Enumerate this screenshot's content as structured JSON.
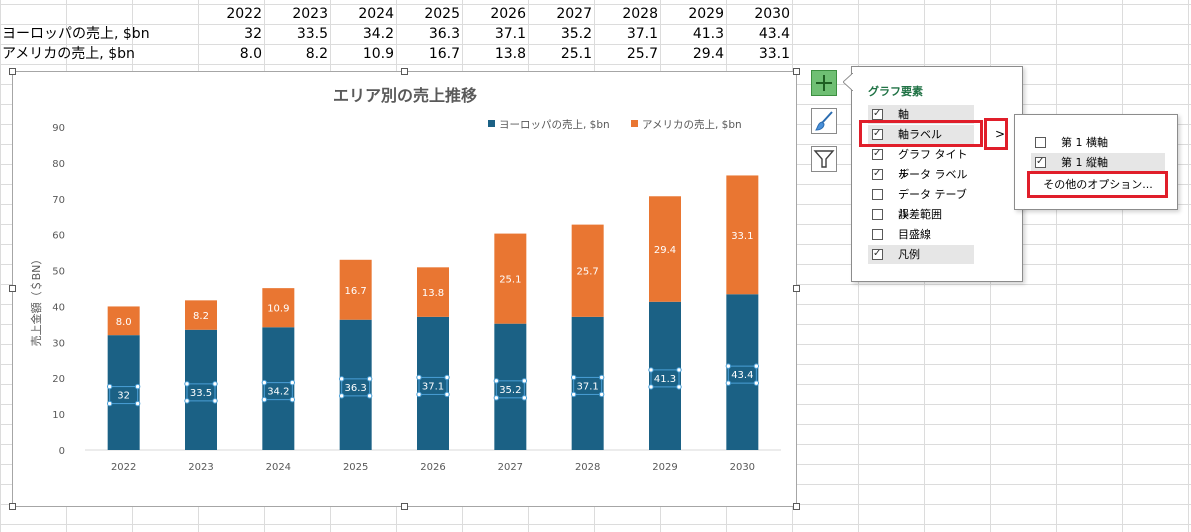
{
  "sheet": {
    "years": [
      "2022",
      "2023",
      "2024",
      "2025",
      "2026",
      "2027",
      "2028",
      "2029",
      "2030"
    ],
    "rows": [
      {
        "label": "ヨーロッパの売上, $bn",
        "values": [
          "32",
          "33.5",
          "34.2",
          "36.3",
          "37.1",
          "35.2",
          "37.1",
          "41.3",
          "43.4"
        ]
      },
      {
        "label": "アメリカの売上, $bn",
        "values": [
          "8.0",
          "8.2",
          "10.9",
          "16.7",
          "13.8",
          "25.1",
          "25.7",
          "29.4",
          "33.1"
        ]
      }
    ]
  },
  "chart_data": {
    "type": "bar",
    "stacked": true,
    "title": "エリア別の売上推移",
    "ylabel": "売上金額（＄BN）",
    "xlabel": "",
    "ylim": [
      0,
      90
    ],
    "yticks": [
      0,
      10,
      20,
      30,
      40,
      50,
      60,
      70,
      80,
      90
    ],
    "grid": false,
    "legend": "top-right",
    "categories": [
      "2022",
      "2023",
      "2024",
      "2025",
      "2026",
      "2027",
      "2028",
      "2029",
      "2030"
    ],
    "series": [
      {
        "name": "ヨーロッパの売上, $bn",
        "color": "#1b6185",
        "values": [
          32,
          33.5,
          34.2,
          36.3,
          37.1,
          35.2,
          37.1,
          41.3,
          43.4
        ],
        "labels": [
          "32",
          "33.5",
          "34.2",
          "36.3",
          "37.1",
          "35.2",
          "37.1",
          "41.3",
          "43.4"
        ]
      },
      {
        "name": "アメリカの売上, $bn",
        "color": "#e97632",
        "values": [
          8.0,
          8.2,
          10.9,
          16.7,
          13.8,
          25.1,
          25.7,
          29.4,
          33.1
        ],
        "labels": [
          "8.0",
          "8.2",
          "10.9",
          "16.7",
          "13.8",
          "25.1",
          "25.7",
          "29.4",
          "33.1"
        ]
      }
    ]
  },
  "side_buttons": {
    "elements": "plus-icon",
    "styles": "paintbrush-icon",
    "filters": "funnel-icon"
  },
  "chart_elements_menu": {
    "title": "グラフ要素",
    "items": [
      {
        "label": "軸",
        "checked": true
      },
      {
        "label": "軸ラベル",
        "checked": true
      },
      {
        "label": "グラフ タイトル",
        "checked": true
      },
      {
        "label": "データ ラベル",
        "checked": true
      },
      {
        "label": "データ テーブル",
        "checked": false
      },
      {
        "label": "誤差範囲",
        "checked": false
      },
      {
        "label": "目盛線",
        "checked": false
      },
      {
        "label": "凡例",
        "checked": true
      }
    ],
    "arrow": ">"
  },
  "axis_label_submenu": {
    "items": [
      {
        "label": "第 1 横軸",
        "checked": false
      },
      {
        "label": "第 1 縦軸",
        "checked": true
      }
    ],
    "more_options": "その他のオプション..."
  },
  "checkbox_glyph": "☑"
}
